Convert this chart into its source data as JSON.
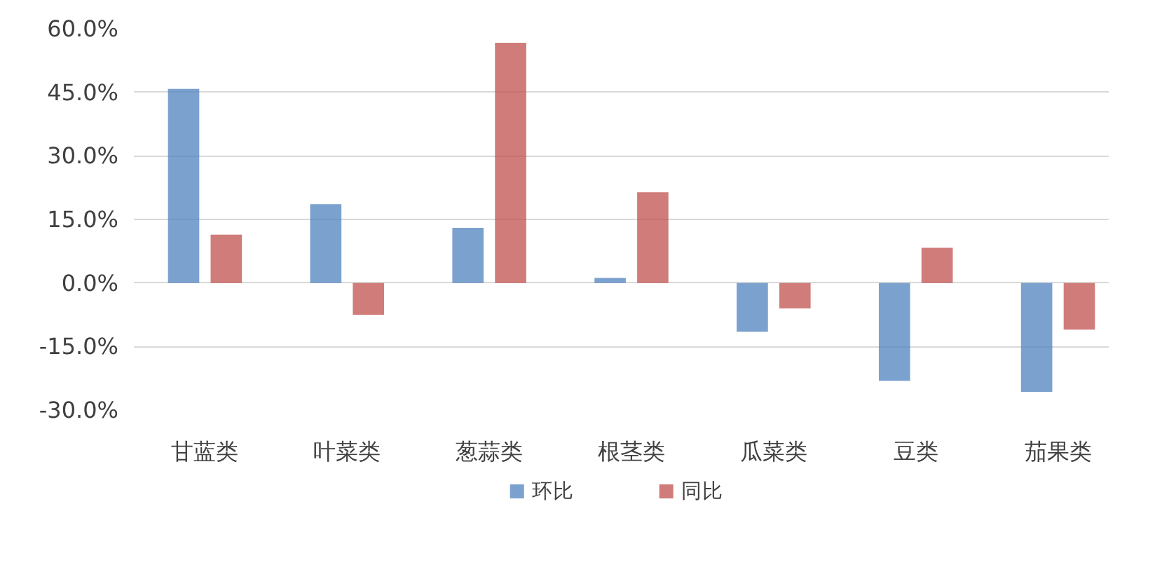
{
  "chart_data": {
    "type": "bar",
    "categories": [
      "甘蓝类",
      "叶菜类",
      "葱蒜类",
      "根茎类",
      "瓜菜类",
      "豆类",
      "茄果类"
    ],
    "series": [
      {
        "name": "环比",
        "color": "#4f81bd",
        "values": [
          45.8,
          18.6,
          13.0,
          1.2,
          -11.5,
          -23.1,
          -25.7
        ]
      },
      {
        "name": "同比",
        "color": "#c0504d",
        "values": [
          11.4,
          -7.5,
          56.7,
          21.4,
          -6.0,
          8.3,
          -11.0
        ]
      }
    ],
    "ylim": [
      -30,
      60
    ],
    "yticks": [
      {
        "value": -30,
        "label": "-30.0%"
      },
      {
        "value": -15,
        "label": "-15.0%"
      },
      {
        "value": 0,
        "label": "0.0%"
      },
      {
        "value": 15,
        "label": "15.0%"
      },
      {
        "value": 30,
        "label": "30.0%"
      },
      {
        "value": 45,
        "label": "45.0%"
      },
      {
        "value": 60,
        "label": "60.0%"
      }
    ],
    "grid": "y",
    "legend": "bottom"
  }
}
